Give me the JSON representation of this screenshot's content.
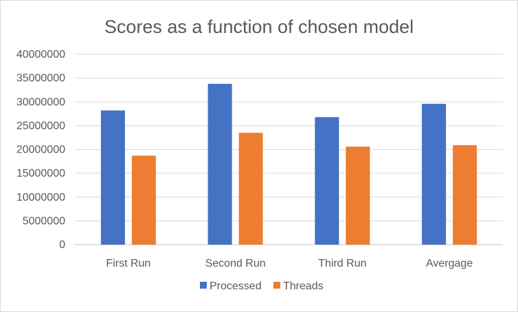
{
  "chart_data": {
    "type": "bar",
    "title": "Scores as a function of chosen model",
    "categories": [
      "First Run",
      "Second Run",
      "Third Run",
      "Avergage"
    ],
    "series": [
      {
        "name": "Processed",
        "color": "#4472C4",
        "values": [
          28200000,
          33800000,
          26800000,
          29600000
        ]
      },
      {
        "name": "Threads",
        "color": "#ED7D31",
        "values": [
          18700000,
          23500000,
          20600000,
          20900000
        ]
      }
    ],
    "ylim": [
      0,
      40000000
    ],
    "yticks": [
      "0",
      "5000000",
      "10000000",
      "15000000",
      "20000000",
      "25000000",
      "30000000",
      "35000000",
      "40000000"
    ],
    "grid": true,
    "legend_position": "bottom"
  }
}
